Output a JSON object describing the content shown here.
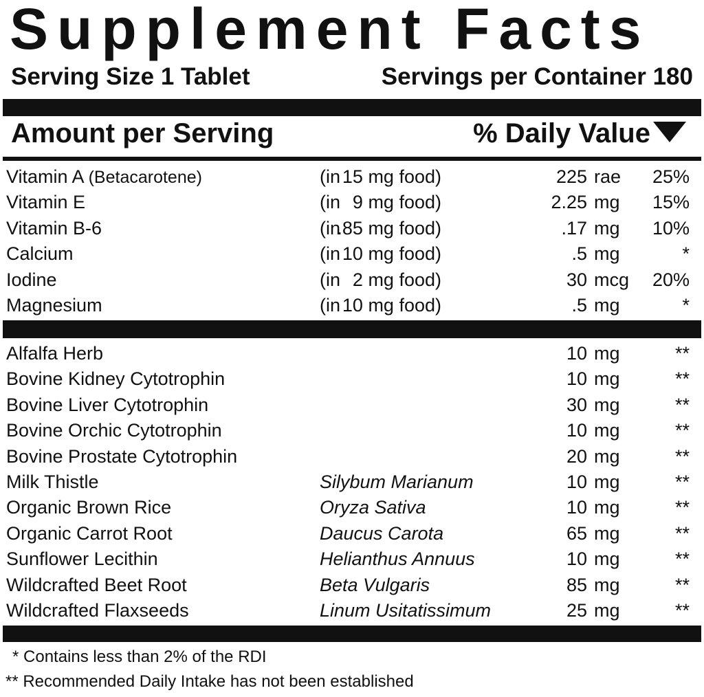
{
  "title": "Supplement Facts",
  "serving_size": "Serving Size 1 Tablet",
  "servings_per_container": "Servings per Container 180",
  "amount_header": "Amount per Serving",
  "dv_header": "% Daily Value",
  "vitamins": [
    {
      "name": "Vitamin A",
      "note": "(Betacarotene)",
      "in": "(in",
      "food": "15 mg food)",
      "amount": "225",
      "unit": "rae",
      "dv": "25%"
    },
    {
      "name": "Vitamin E",
      "note": "",
      "in": "(in",
      "food": "9 mg food)",
      "amount": "2.25",
      "unit": "mg",
      "dv": "15%"
    },
    {
      "name": "Vitamin B-6",
      "note": "",
      "in": "(in",
      "food": ".85 mg food)",
      "amount": ".17",
      "unit": "mg",
      "dv": "10%"
    },
    {
      "name": "Calcium",
      "note": "",
      "in": "(in",
      "food": "10 mg food)",
      "amount": ".5",
      "unit": "mg",
      "dv": "*"
    },
    {
      "name": "Iodine",
      "note": "",
      "in": "(in",
      "food": "2 mg food)",
      "amount": "30",
      "unit": "mcg",
      "dv": "20%"
    },
    {
      "name": "Magnesium",
      "note": "",
      "in": "(in",
      "food": "10 mg food)",
      "amount": ".5",
      "unit": "mg",
      "dv": "*"
    }
  ],
  "ingredients": [
    {
      "name": "Alfalfa Herb",
      "latin": "",
      "amount": "10",
      "unit": "mg",
      "dv": "**"
    },
    {
      "name": "Bovine Kidney Cytotrophin",
      "latin": "",
      "amount": "10",
      "unit": "mg",
      "dv": "**"
    },
    {
      "name": "Bovine Liver Cytotrophin",
      "latin": "",
      "amount": "30",
      "unit": "mg",
      "dv": "**"
    },
    {
      "name": "Bovine Orchic Cytotrophin",
      "latin": "",
      "amount": "10",
      "unit": "mg",
      "dv": "**"
    },
    {
      "name": "Bovine Prostate Cytotrophin",
      "latin": "",
      "amount": "20",
      "unit": "mg",
      "dv": "**"
    },
    {
      "name": "Milk Thistle",
      "latin": "Silybum Marianum",
      "amount": "10",
      "unit": "mg",
      "dv": "**"
    },
    {
      "name": "Organic Brown Rice",
      "latin": "Oryza Sativa",
      "amount": "10",
      "unit": "mg",
      "dv": "**"
    },
    {
      "name": "Organic Carrot Root",
      "latin": "Daucus Carota",
      "amount": "65",
      "unit": "mg",
      "dv": "**"
    },
    {
      "name": "Sunflower Lecithin",
      "latin": "Helianthus Annuus",
      "amount": "10",
      "unit": "mg",
      "dv": "**"
    },
    {
      "name": "Wildcrafted Beet Root",
      "latin": "Beta Vulgaris",
      "amount": "85",
      "unit": "mg",
      "dv": "**"
    },
    {
      "name": "Wildcrafted Flaxseeds",
      "latin": "Linum Usitatissimum",
      "amount": "25",
      "unit": "mg",
      "dv": "**"
    }
  ],
  "footnotes": [
    "* Contains less than 2% of the RDI",
    "** Recommended Daily Intake has not been established"
  ]
}
